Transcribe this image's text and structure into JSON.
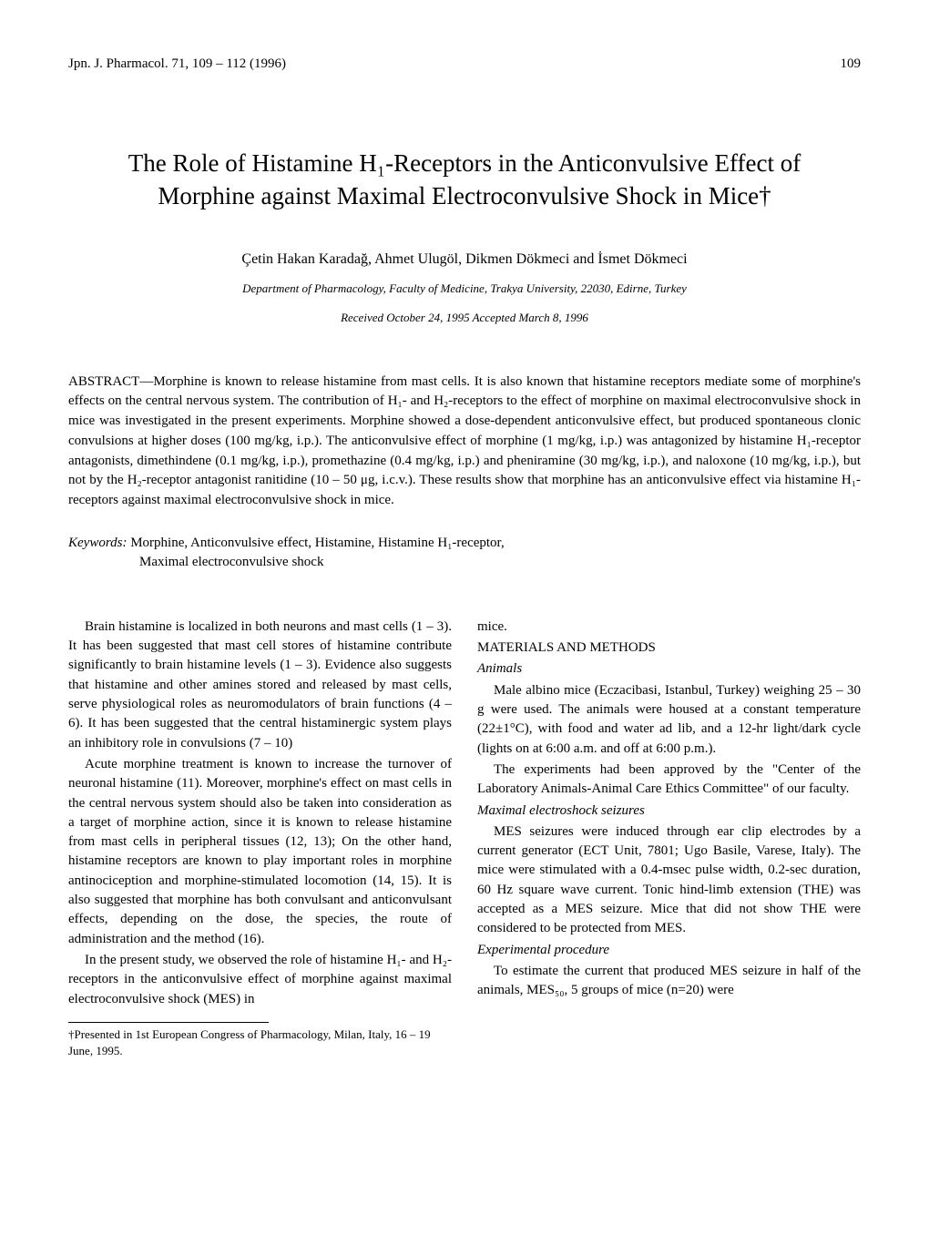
{
  "header": {
    "journal": "Jpn. J. Pharmacol. 71, 109 – 112 (1996)",
    "page": "109"
  },
  "title": "The Role of Histamine H₁-Receptors in the Anticonvulsive Effect of Morphine against Maximal Electroconvulsive Shock in Mice†",
  "authors": "Çetin Hakan Karadağ, Ahmet Ulugöl, Dikmen Dökmeci and İsmet Dökmeci",
  "affiliation": "Department of Pharmacology, Faculty of Medicine, Trakya University, 22030, Edirne, Turkey",
  "dates": "Received October 24, 1995    Accepted March 8, 1996",
  "abstract": "ABSTRACT—Morphine is known to release histamine from mast cells. It is also known that histamine receptors mediate some of morphine's effects on the central nervous system. The contribution of H₁- and H₂-receptors to the effect of morphine on maximal electroconvulsive shock in mice was investigated in the present experiments. Morphine showed a dose-dependent anticonvulsive effect, but produced spontaneous clonic convulsions at higher doses (100 mg/kg, i.p.). The anticonvulsive effect of morphine (1 mg/kg, i.p.) was antagonized by histamine H₁-receptor antagonists, dimethindene (0.1 mg/kg, i.p.), promethazine (0.4 mg/kg, i.p.) and pheniramine (30 mg/kg, i.p.), and naloxone (10 mg/kg, i.p.), but not by the H₂-receptor antagonist ranitidine (10 – 50 μg, i.c.v.). These results show that morphine has an anticonvulsive effect via histamine H₁-receptors against maximal electroconvulsive shock in mice.",
  "keywords": {
    "label": "Keywords:",
    "line1": " Morphine, Anticonvulsive effect, Histamine, Histamine H₁-receptor,",
    "line2": "Maximal electroconvulsive shock"
  },
  "body": {
    "left": {
      "p1": "Brain histamine is localized in both neurons and mast cells (1 – 3). It has been suggested that mast cell stores of histamine contribute significantly to brain histamine levels (1 – 3). Evidence also suggests that histamine and other amines stored and released by mast cells, serve physiological roles as neuromodulators of brain functions (4 – 6). It has been suggested that the central histaminergic system plays an inhibitory role in convulsions (7 – 10)",
      "p2": "Acute morphine treatment is known to increase the turnover of neuronal histamine (11). Moreover, morphine's effect on mast cells in the central nervous system should also be taken into consideration as a target of morphine action, since it is known to release histamine from mast cells in peripheral tissues (12, 13); On the other hand, histamine receptors are known to play important roles in morphine antinociception and morphine-stimulated locomotion (14, 15). It is also suggested that morphine has both convulsant and anticonvulsant effects, depending on the dose, the species, the route of administration and the method (16).",
      "p3": "In the present study, we observed the role of histamine H₁- and H₂-receptors in the anticonvulsive effect of morphine against maximal electroconvulsive shock (MES) in",
      "footnote": "†Presented in 1st European Congress of Pharmacology, Milan, Italy, 16 – 19 June, 1995."
    },
    "right": {
      "p0": "mice.",
      "heading1": "MATERIALS AND METHODS",
      "sub1": "Animals",
      "p1": "Male albino mice (Eczacibasi, Istanbul, Turkey) weighing 25 – 30 g were used. The animals were housed at a constant temperature (22±1°C), with food and water ad lib, and a 12-hr light/dark cycle (lights on at 6:00 a.m. and off at 6:00 p.m.).",
      "p2": "The experiments had been approved by the \"Center of the Laboratory Animals-Animal Care Ethics Committee\" of our faculty.",
      "sub2": "Maximal electroshock seizures",
      "p3": "MES seizures were induced through ear clip electrodes by a current generator (ECT Unit, 7801; Ugo Basile, Varese, Italy). The mice were stimulated with a 0.4-msec pulse width, 0.2-sec duration, 60 Hz square wave current. Tonic hind-limb extension (THE) was accepted as a MES seizure. Mice that did not show THE were considered to be protected from MES.",
      "sub3": "Experimental procedure",
      "p4": "To estimate the current that produced MES seizure in half of the animals, MES₅₀, 5 groups of mice (n=20) were"
    }
  }
}
